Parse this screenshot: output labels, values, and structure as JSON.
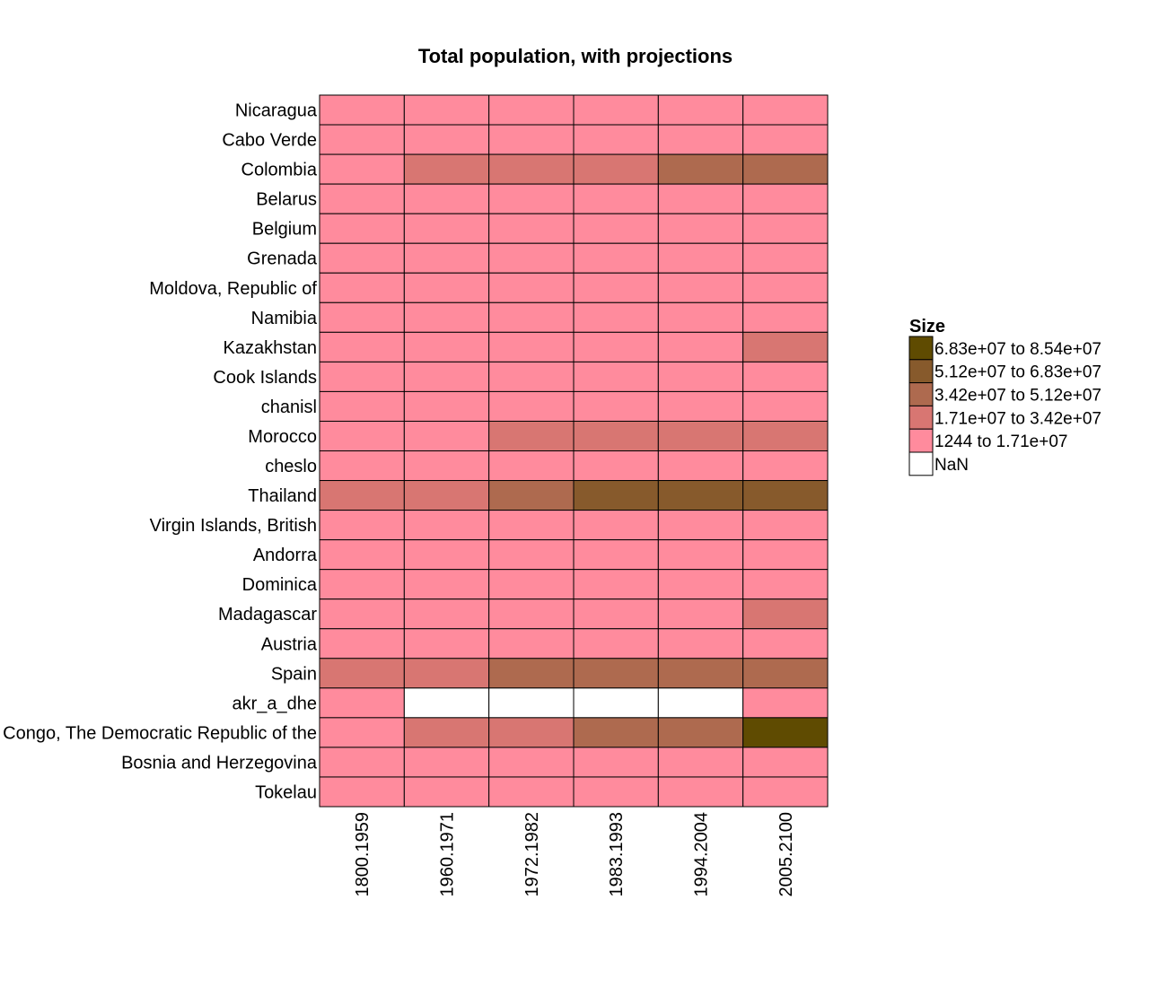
{
  "chart_data": {
    "type": "heatmap",
    "title": "Total population, with projections",
    "columns": [
      "1800.1959",
      "1960.1971",
      "1972.1982",
      "1983.1993",
      "1994.2004",
      "2005.2100"
    ],
    "rows": [
      "Nicaragua",
      "Cabo Verde",
      "Colombia",
      "Belarus",
      "Belgium",
      "Grenada",
      "Moldova, Republic of",
      "Namibia",
      "Kazakhstan",
      "Cook Islands",
      "chanisl",
      "Morocco",
      "cheslo",
      "Thailand",
      "Virgin Islands, British",
      "Andorra",
      "Dominica",
      "Madagascar",
      "Austria",
      "Spain",
      "akr_a_dhe",
      "Congo, The Democratic Republic of the",
      "Bosnia and Herzegovina",
      "Tokelau"
    ],
    "cell_bins": [
      [
        0,
        0,
        0,
        0,
        0,
        0
      ],
      [
        0,
        0,
        0,
        0,
        0,
        0
      ],
      [
        0,
        1,
        1,
        1,
        2,
        2
      ],
      [
        0,
        0,
        0,
        0,
        0,
        0
      ],
      [
        0,
        0,
        0,
        0,
        0,
        0
      ],
      [
        0,
        0,
        0,
        0,
        0,
        0
      ],
      [
        0,
        0,
        0,
        0,
        0,
        0
      ],
      [
        0,
        0,
        0,
        0,
        0,
        0
      ],
      [
        0,
        0,
        0,
        0,
        0,
        1
      ],
      [
        0,
        0,
        0,
        0,
        0,
        0
      ],
      [
        0,
        0,
        0,
        0,
        0,
        0
      ],
      [
        0,
        0,
        1,
        1,
        1,
        1
      ],
      [
        0,
        0,
        0,
        0,
        0,
        0
      ],
      [
        1,
        1,
        2,
        3,
        3,
        3
      ],
      [
        0,
        0,
        0,
        0,
        0,
        0
      ],
      [
        0,
        0,
        0,
        0,
        0,
        0
      ],
      [
        0,
        0,
        0,
        0,
        0,
        0
      ],
      [
        0,
        0,
        0,
        0,
        0,
        1
      ],
      [
        0,
        0,
        0,
        0,
        0,
        0
      ],
      [
        1,
        1,
        2,
        2,
        2,
        2
      ],
      [
        0,
        -1,
        -1,
        -1,
        -1,
        0
      ],
      [
        0,
        1,
        1,
        2,
        2,
        4
      ],
      [
        0,
        0,
        0,
        0,
        0,
        0
      ],
      [
        0,
        0,
        0,
        0,
        0,
        0
      ]
    ],
    "legend": {
      "title": "Size",
      "position": "right",
      "bins": [
        {
          "label": "1244 to 1.71e+07",
          "color": "#FF8B9D"
        },
        {
          "label": "1.71e+07 to 3.42e+07",
          "color": "#D87672"
        },
        {
          "label": "3.42e+07 to 5.12e+07",
          "color": "#AE6A4F"
        },
        {
          "label": "5.12e+07 to 6.83e+07",
          "color": "#875A2C"
        },
        {
          "label": "6.83e+07 to 8.54e+07",
          "color": "#5F4B01"
        }
      ],
      "nan": {
        "label": "NaN",
        "color": "#FFFFFF"
      }
    },
    "grid": true
  }
}
